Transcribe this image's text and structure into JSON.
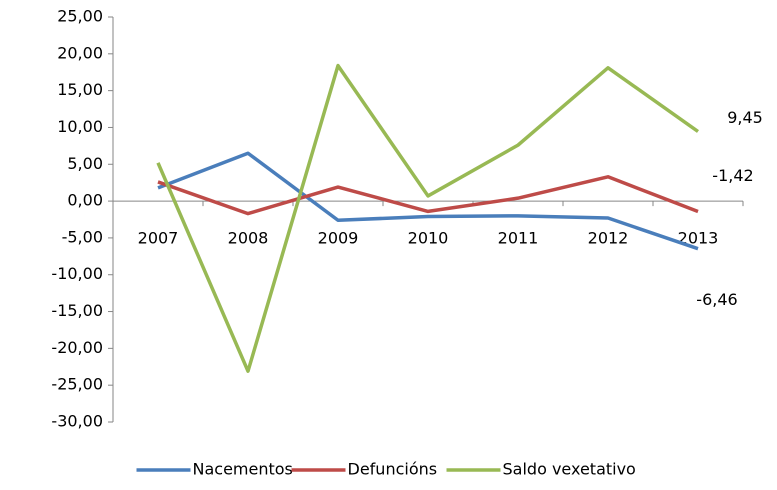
{
  "chart_data": {
    "type": "line",
    "categories": [
      "2007",
      "2008",
      "2009",
      "2010",
      "2011",
      "2012",
      "2013"
    ],
    "series": [
      {
        "name": "Nacementos",
        "color": "#4a7ebb",
        "values": [
          1.8,
          6.5,
          -2.6,
          -2.1,
          -2.0,
          -2.3,
          -6.46
        ],
        "value_labels": [
          null,
          null,
          null,
          null,
          null,
          null,
          "-6,46"
        ]
      },
      {
        "name": "Defuncións",
        "color": "#be4b48",
        "values": [
          2.6,
          -1.7,
          1.9,
          -1.4,
          0.4,
          3.3,
          -1.42
        ],
        "value_labels": [
          null,
          null,
          null,
          null,
          null,
          null,
          "-1,42"
        ]
      },
      {
        "name": "Saldo vexetativo",
        "color": "#98b954",
        "values": [
          5.2,
          -23.1,
          18.4,
          0.7,
          7.6,
          18.1,
          9.45
        ],
        "value_labels": [
          null,
          null,
          null,
          null,
          null,
          null,
          "9,45"
        ]
      }
    ],
    "ylim": [
      -30,
      25
    ],
    "yticks": [
      {
        "value": -30,
        "label": "-30,00"
      },
      {
        "value": -25,
        "label": "-25,00"
      },
      {
        "value": -20,
        "label": "-20,00"
      },
      {
        "value": -15,
        "label": "-15,00"
      },
      {
        "value": -10,
        "label": "-10,00"
      },
      {
        "value": -5,
        "label": "-5,00"
      },
      {
        "value": 0,
        "label": "0,00"
      },
      {
        "value": 5,
        "label": "5,00"
      },
      {
        "value": 10,
        "label": "10,00"
      },
      {
        "value": 15,
        "label": "15,00"
      },
      {
        "value": 20,
        "label": "20,00"
      },
      {
        "value": 25,
        "label": "25,00"
      }
    ],
    "grid": false,
    "legend": "bottom"
  }
}
